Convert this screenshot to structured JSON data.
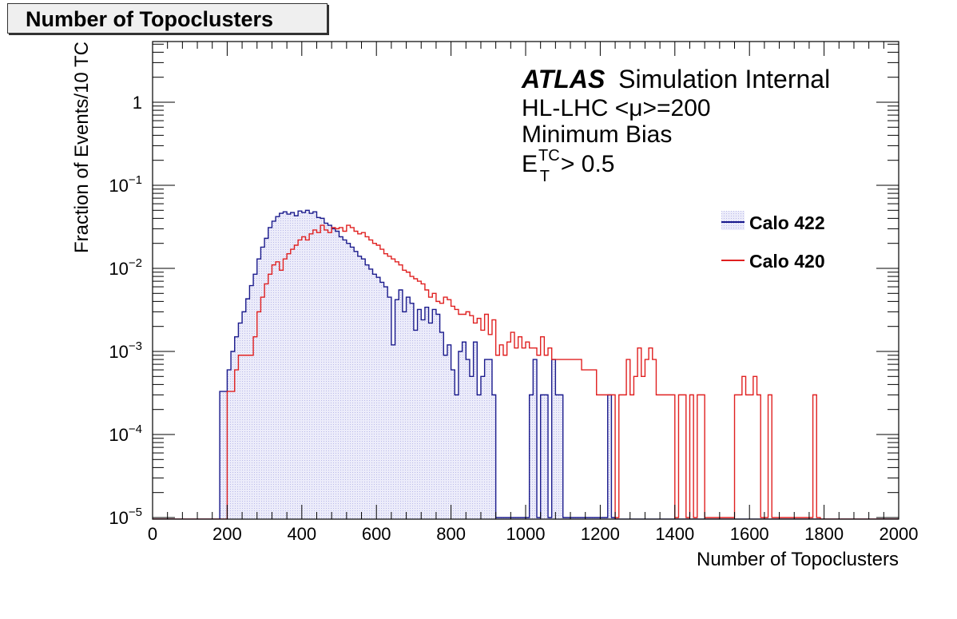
{
  "header": {
    "title": "Number of Topoclusters"
  },
  "chart_data": {
    "type": "line",
    "title": "Number of Topoclusters",
    "xlabel": "Number of Topoclusters",
    "ylabel": "Fraction of Events/10 TC",
    "xlim": [
      0,
      2000
    ],
    "ylim": [
      1e-05,
      5
    ],
    "yscale": "log",
    "grid": false,
    "legend_position": "right",
    "x_ticks": [
      "0",
      "200",
      "400",
      "600",
      "800",
      "1000",
      "1200",
      "1400",
      "1600",
      "1800",
      "2000"
    ],
    "y_ticks": [
      {
        "base": "1",
        "exp": ""
      },
      {
        "base": "10",
        "exp": "−1"
      },
      {
        "base": "10",
        "exp": "−2"
      },
      {
        "base": "10",
        "exp": "−3"
      },
      {
        "base": "10",
        "exp": "−4"
      },
      {
        "base": "10",
        "exp": "−5"
      }
    ],
    "annotations": {
      "atlas": "ATLAS",
      "atlas_suffix": "Simulation Internal",
      "line2": "HL-LHC <μ>=200",
      "line3": "Minimum Bias",
      "cut_base": "E",
      "cut_sub": "T",
      "cut_sup": "TC",
      "cut_rest": "> 0.5"
    },
    "series": [
      {
        "name": "Calo 422",
        "color": "#1a1a8c",
        "fill": "#c8c8f0",
        "bins_start": 180,
        "bin_width": 10,
        "values": [
          0.00033,
          0.00033,
          0.0006,
          0.001,
          0.0015,
          0.0022,
          0.003,
          0.0043,
          0.0062,
          0.0085,
          0.013,
          0.018,
          0.023,
          0.031,
          0.037,
          0.042,
          0.046,
          0.048,
          0.045,
          0.047,
          0.043,
          0.049,
          0.047,
          0.05,
          0.046,
          0.048,
          0.041,
          0.04,
          0.035,
          0.033,
          0.03,
          0.028,
          0.024,
          0.022,
          0.02,
          0.018,
          0.016,
          0.014,
          0.013,
          0.011,
          0.0098,
          0.0085,
          0.0078,
          0.0068,
          0.006,
          0.0045,
          0.0012,
          0.0042,
          0.0055,
          0.003,
          0.0045,
          0.0038,
          0.0018,
          0.0032,
          0.0024,
          0.0034,
          0.0022,
          0.0032,
          0.0028,
          0.0017,
          0.0009,
          0.0012,
          0.0006,
          0.0003,
          0.001,
          0.0013,
          0.0008,
          0.0005,
          0.0013,
          0.0003,
          0.0005,
          0.0008,
          0.0008,
          0.0003,
          1e-05,
          1e-05,
          1e-05,
          1e-05,
          1e-05,
          1e-05,
          1e-05,
          1e-05,
          1e-05,
          0.0003,
          0.0008,
          1e-05,
          0.0003,
          0.0003,
          1e-05,
          0.0008,
          0.0003,
          0.0003,
          1e-05,
          1e-05,
          1e-05,
          1e-05,
          1e-05,
          1e-05,
          1e-05,
          1e-05,
          1e-05,
          1e-05,
          1e-05,
          1e-05,
          0.0003,
          1e-05
        ]
      },
      {
        "name": "Calo 420",
        "color": "#e02020",
        "fill": "none",
        "bins_start": 200,
        "bin_width": 10,
        "values": [
          0.00033,
          0.00033,
          0.0006,
          0.0009,
          0.0009,
          0.0009,
          0.0009,
          0.0015,
          0.003,
          0.0045,
          0.0065,
          0.0085,
          0.011,
          0.012,
          0.0095,
          0.013,
          0.015,
          0.017,
          0.019,
          0.022,
          0.024,
          0.022,
          0.026,
          0.029,
          0.027,
          0.033,
          0.029,
          0.027,
          0.031,
          0.03,
          0.031,
          0.028,
          0.033,
          0.031,
          0.028,
          0.026,
          0.027,
          0.024,
          0.022,
          0.02,
          0.019,
          0.017,
          0.015,
          0.014,
          0.013,
          0.012,
          0.011,
          0.0095,
          0.009,
          0.008,
          0.0075,
          0.007,
          0.0065,
          0.0055,
          0.0045,
          0.005,
          0.004,
          0.0038,
          0.0045,
          0.0042,
          0.0035,
          0.0032,
          0.0028,
          0.0028,
          0.003,
          0.0027,
          0.0022,
          0.0025,
          0.0018,
          0.0028,
          0.0016,
          0.0024,
          0.0009,
          0.0012,
          0.0009,
          0.0013,
          0.0017,
          0.0011,
          0.0015,
          0.0011,
          0.0013,
          0.0011,
          0.0011,
          0.0009,
          0.0015,
          0.0009,
          0.0011,
          0.0008,
          0.0008,
          0.0008,
          0.0008,
          0.0008,
          0.0008,
          0.0008,
          0.0008,
          0.0006,
          0.0006,
          0.0006,
          0.0006,
          0.0003,
          0.0003,
          0.0003,
          0.0003,
          0.0003,
          1e-05,
          0.0003,
          0.0003,
          0.0008,
          0.0003,
          0.0005,
          0.0011,
          0.0005,
          0.0008,
          0.0011,
          0.0008,
          0.0003,
          0.0003,
          0.0003,
          0.0003,
          0.0003,
          1e-05,
          0.0003,
          0.0003,
          1e-05,
          0.0003,
          1e-05,
          0.0003,
          0.0003,
          1e-05,
          1e-05,
          1e-05,
          1e-05,
          1e-05,
          1e-05,
          1e-05,
          1e-05,
          0.0003,
          0.0003,
          0.0005,
          0.0003,
          0.0003,
          0.0005,
          0.0003,
          1e-05,
          1e-05,
          0.0003,
          1e-05,
          1e-05,
          1e-05,
          1e-05,
          1e-05,
          1e-05,
          1e-05,
          1e-05,
          1e-05,
          1e-05,
          1e-05,
          0.0003,
          1e-05
        ]
      }
    ]
  }
}
